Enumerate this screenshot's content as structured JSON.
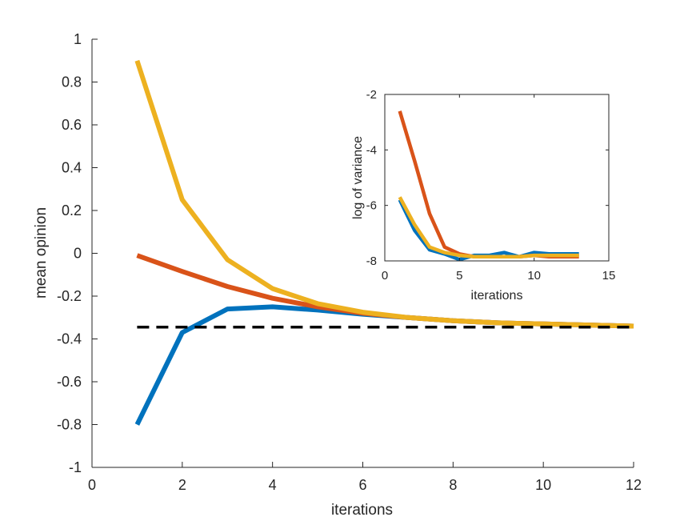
{
  "chart_data": [
    {
      "type": "line",
      "title": "",
      "xlabel": "iterations",
      "ylabel": "mean opinion",
      "xlim": [
        0,
        12
      ],
      "ylim": [
        -1,
        1
      ],
      "xticks": [
        0,
        2,
        4,
        6,
        8,
        10,
        12
      ],
      "xtick_labels": [
        "0",
        "2",
        "4",
        "6",
        "8",
        "10",
        "12"
      ],
      "yticks": [
        -1,
        -0.8,
        -0.6,
        -0.4,
        -0.2,
        0,
        0.2,
        0.4,
        0.6,
        0.8,
        1
      ],
      "ytick_labels": [
        "-1",
        "-0.8",
        "-0.6",
        "-0.4",
        "-0.2",
        "0",
        "0.2",
        "0.4",
        "0.6",
        "0.8",
        "1"
      ],
      "grid": false,
      "x": [
        1,
        2,
        3,
        4,
        5,
        6,
        7,
        8,
        9,
        10,
        11,
        12
      ],
      "series": [
        {
          "name": "blue",
          "color": "#0072BD",
          "style": "solid",
          "values": [
            -0.8,
            -0.37,
            -0.26,
            -0.25,
            -0.265,
            -0.285,
            -0.3,
            -0.315,
            -0.325,
            -0.33,
            -0.335,
            -0.34
          ]
        },
        {
          "name": "red",
          "color": "#D95319",
          "style": "solid",
          "values": [
            -0.01,
            -0.085,
            -0.155,
            -0.21,
            -0.25,
            -0.28,
            -0.3,
            -0.315,
            -0.325,
            -0.33,
            -0.335,
            -0.34
          ]
        },
        {
          "name": "yellow",
          "color": "#EDB120",
          "style": "solid",
          "values": [
            0.9,
            0.25,
            -0.03,
            -0.165,
            -0.235,
            -0.275,
            -0.3,
            -0.315,
            -0.325,
            -0.33,
            -0.335,
            -0.34
          ]
        },
        {
          "name": "reference",
          "color": "#000000",
          "style": "dashed",
          "x": [
            1,
            12
          ],
          "values": [
            -0.345,
            -0.345
          ]
        }
      ]
    },
    {
      "type": "line",
      "title": "",
      "xlabel": "iterations",
      "ylabel": "log of variance",
      "xlim": [
        0,
        15
      ],
      "ylim": [
        -8,
        -2
      ],
      "xticks": [
        0,
        5,
        10,
        15
      ],
      "xtick_labels": [
        "0",
        "5",
        "10",
        "15"
      ],
      "yticks": [
        -8,
        -6,
        -4,
        -2
      ],
      "ytick_labels": [
        "-8",
        "-6",
        "-4",
        "-2"
      ],
      "grid": false,
      "x": [
        1,
        2,
        3,
        4,
        5,
        6,
        7,
        8,
        9,
        10,
        11,
        12,
        13
      ],
      "series": [
        {
          "name": "blue",
          "color": "#0072BD",
          "style": "solid",
          "values": [
            -5.8,
            -6.9,
            -7.6,
            -7.75,
            -7.95,
            -7.8,
            -7.8,
            -7.7,
            -7.85,
            -7.7,
            -7.75,
            -7.75,
            -7.75
          ]
        },
        {
          "name": "red",
          "color": "#D95319",
          "style": "solid",
          "values": [
            -2.6,
            -4.4,
            -6.3,
            -7.5,
            -7.75,
            -7.85,
            -7.85,
            -7.85,
            -7.85,
            -7.8,
            -7.85,
            -7.85,
            -7.85
          ]
        },
        {
          "name": "yellow",
          "color": "#EDB120",
          "style": "solid",
          "values": [
            -5.7,
            -6.7,
            -7.5,
            -7.7,
            -7.8,
            -7.85,
            -7.85,
            -7.85,
            -7.85,
            -7.8,
            -7.8,
            -7.8,
            -7.8
          ]
        }
      ]
    }
  ]
}
